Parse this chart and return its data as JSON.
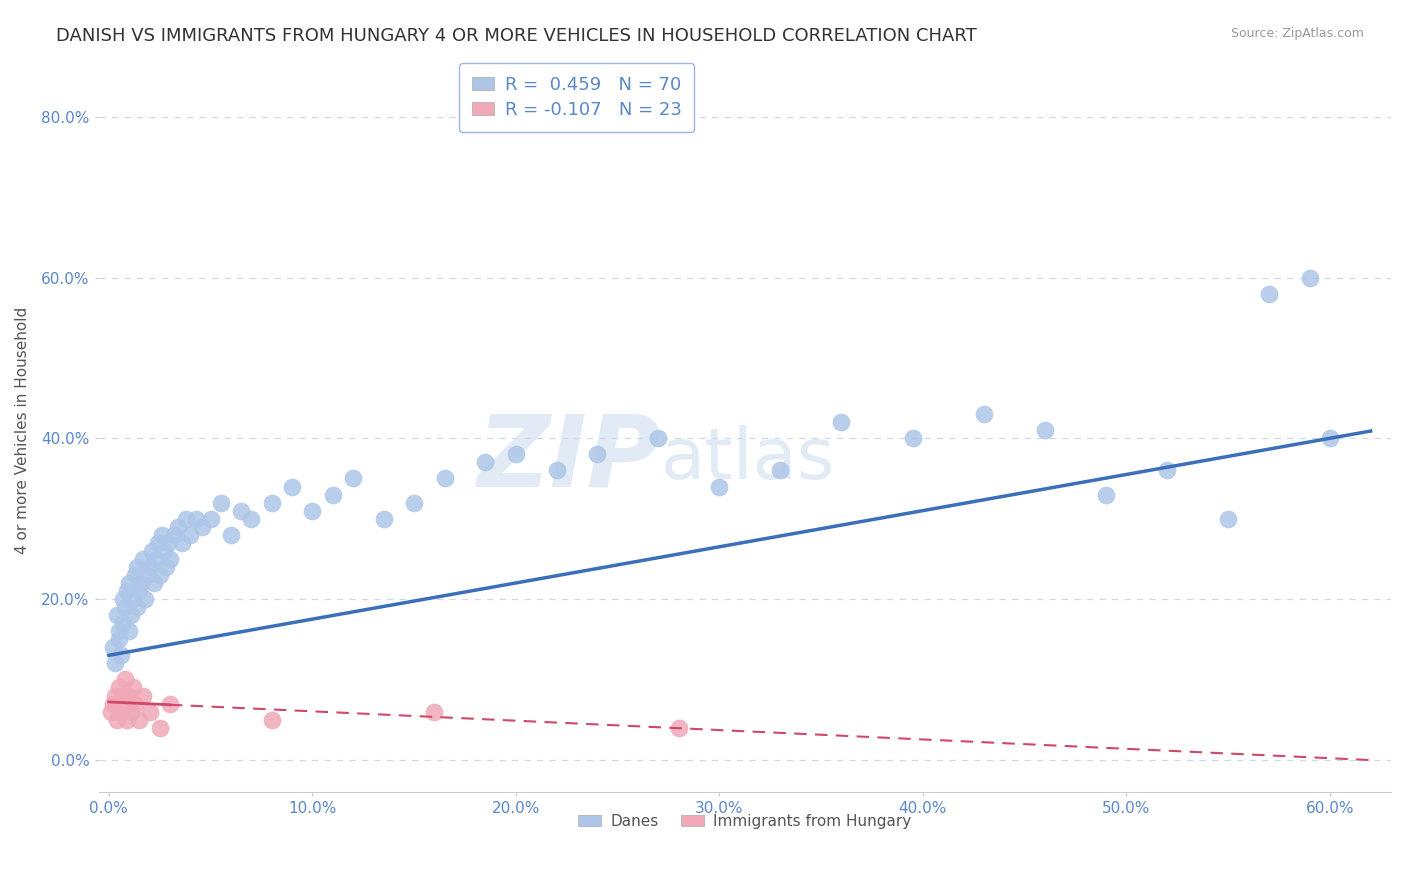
{
  "title": "DANISH VS IMMIGRANTS FROM HUNGARY 4 OR MORE VEHICLES IN HOUSEHOLD CORRELATION CHART",
  "source": "Source: ZipAtlas.com",
  "ylabel": "4 or more Vehicles in Household",
  "xlim": [
    -0.005,
    0.63
  ],
  "ylim": [
    -0.04,
    0.86
  ],
  "xticks": [
    0.0,
    0.1,
    0.2,
    0.3,
    0.4,
    0.5,
    0.6
  ],
  "xticklabels": [
    "0.0%",
    "10.0%",
    "20.0%",
    "30.0%",
    "40.0%",
    "50.0%",
    "60.0%"
  ],
  "yticks": [
    0.0,
    0.2,
    0.4,
    0.6,
    0.8
  ],
  "yticklabels": [
    "0.0%",
    "20.0%",
    "40.0%",
    "60.0%",
    "80.0%"
  ],
  "danes_R": 0.459,
  "danes_N": 70,
  "hungary_R": -0.107,
  "hungary_N": 23,
  "danes_color": "#adc6e8",
  "danes_line_color": "#3b6fba",
  "hungary_color": "#f0a8b8",
  "hungary_line_color": "#d04868",
  "danes_x": [
    0.002,
    0.003,
    0.004,
    0.005,
    0.005,
    0.006,
    0.007,
    0.007,
    0.008,
    0.009,
    0.01,
    0.01,
    0.011,
    0.012,
    0.013,
    0.014,
    0.014,
    0.015,
    0.016,
    0.017,
    0.018,
    0.019,
    0.02,
    0.021,
    0.022,
    0.023,
    0.024,
    0.025,
    0.026,
    0.027,
    0.028,
    0.029,
    0.03,
    0.032,
    0.034,
    0.036,
    0.038,
    0.04,
    0.043,
    0.046,
    0.05,
    0.055,
    0.06,
    0.065,
    0.07,
    0.08,
    0.09,
    0.1,
    0.11,
    0.12,
    0.135,
    0.15,
    0.165,
    0.185,
    0.2,
    0.22,
    0.24,
    0.27,
    0.3,
    0.33,
    0.36,
    0.395,
    0.43,
    0.46,
    0.49,
    0.52,
    0.55,
    0.57,
    0.59,
    0.6
  ],
  "danes_y": [
    0.14,
    0.12,
    0.18,
    0.15,
    0.16,
    0.13,
    0.2,
    0.17,
    0.19,
    0.21,
    0.16,
    0.22,
    0.18,
    0.2,
    0.23,
    0.19,
    0.24,
    0.21,
    0.22,
    0.25,
    0.2,
    0.23,
    0.24,
    0.26,
    0.22,
    0.25,
    0.27,
    0.23,
    0.28,
    0.26,
    0.24,
    0.27,
    0.25,
    0.28,
    0.29,
    0.27,
    0.3,
    0.28,
    0.3,
    0.29,
    0.3,
    0.32,
    0.28,
    0.31,
    0.3,
    0.32,
    0.34,
    0.31,
    0.33,
    0.35,
    0.3,
    0.32,
    0.35,
    0.37,
    0.38,
    0.36,
    0.38,
    0.4,
    0.34,
    0.36,
    0.42,
    0.4,
    0.43,
    0.41,
    0.33,
    0.36,
    0.3,
    0.58,
    0.6,
    0.4
  ],
  "hungary_x": [
    0.001,
    0.002,
    0.003,
    0.004,
    0.005,
    0.005,
    0.006,
    0.007,
    0.008,
    0.008,
    0.009,
    0.01,
    0.011,
    0.012,
    0.013,
    0.015,
    0.017,
    0.02,
    0.025,
    0.03,
    0.08,
    0.16,
    0.28
  ],
  "hungary_y": [
    0.06,
    0.07,
    0.08,
    0.05,
    0.07,
    0.09,
    0.06,
    0.08,
    0.07,
    0.1,
    0.05,
    0.08,
    0.06,
    0.09,
    0.07,
    0.05,
    0.08,
    0.06,
    0.04,
    0.07,
    0.05,
    0.06,
    0.04
  ],
  "background_color": "#ffffff",
  "grid_color": "#d0d8e8",
  "tick_color": "#5a88c8",
  "title_fontsize": 13,
  "axis_label_fontsize": 11,
  "tick_fontsize": 11,
  "legend_fontsize": 13,
  "watermark_color": "#d0ddf0",
  "watermark_alpha": 0.6
}
